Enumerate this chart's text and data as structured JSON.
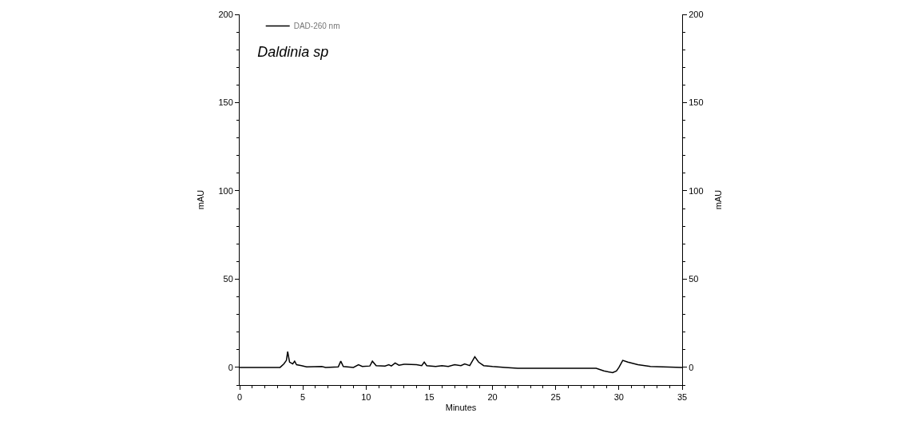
{
  "chart_data": {
    "type": "line",
    "title": "Daldinia sp",
    "xlabel": "Minutes",
    "ylabel": "mAU",
    "y2label": "mAU",
    "x": [
      0,
      3.2,
      3.5,
      3.7,
      3.8,
      3.95,
      4.2,
      4.35,
      4.5,
      4.9,
      5.3,
      6.5,
      6.8,
      7.8,
      8.0,
      8.2,
      9.0,
      9.4,
      9.7,
      10.3,
      10.5,
      10.8,
      11.5,
      11.8,
      12.0,
      12.3,
      12.6,
      13,
      14,
      14.4,
      14.6,
      14.8,
      15.5,
      16.0,
      16.5,
      17.0,
      17.5,
      17.8,
      18.2,
      18.6,
      18.9,
      19.3,
      20,
      21,
      22,
      25,
      27.5,
      28.2,
      28.8,
      29.5,
      29.8,
      30.0,
      30.3,
      30.7,
      31.5,
      32.5,
      35
    ],
    "series": [
      {
        "name": "DAD-260 nm",
        "color": "#000000",
        "values": [
          0,
          0,
          2,
          4,
          9,
          3,
          2,
          3.5,
          1.5,
          1,
          0.3,
          0.5,
          0,
          0.3,
          3.5,
          0.5,
          0,
          1.5,
          0.5,
          0.8,
          3.5,
          1,
          0.8,
          1.5,
          0.8,
          2.5,
          1.2,
          1.8,
          1.5,
          1,
          3,
          1,
          0.5,
          1,
          0.5,
          1.5,
          1,
          2,
          1,
          6,
          3,
          1,
          0.5,
          0,
          -0.5,
          -0.5,
          -0.5,
          -0.5,
          -2,
          -3,
          -2,
          0,
          4,
          3,
          1.5,
          0.5,
          0
        ]
      }
    ],
    "xlim": [
      0,
      35
    ],
    "ylim": [
      -10,
      200
    ],
    "y2lim": [
      -10,
      200
    ],
    "xticks": [
      0,
      5,
      10,
      15,
      20,
      25,
      30,
      35
    ],
    "yticks": [
      0,
      50,
      100,
      150,
      200
    ],
    "y2ticks": [
      0,
      50,
      100,
      150,
      200
    ],
    "legend": "top left",
    "marker": "none",
    "line_style": "solid"
  }
}
